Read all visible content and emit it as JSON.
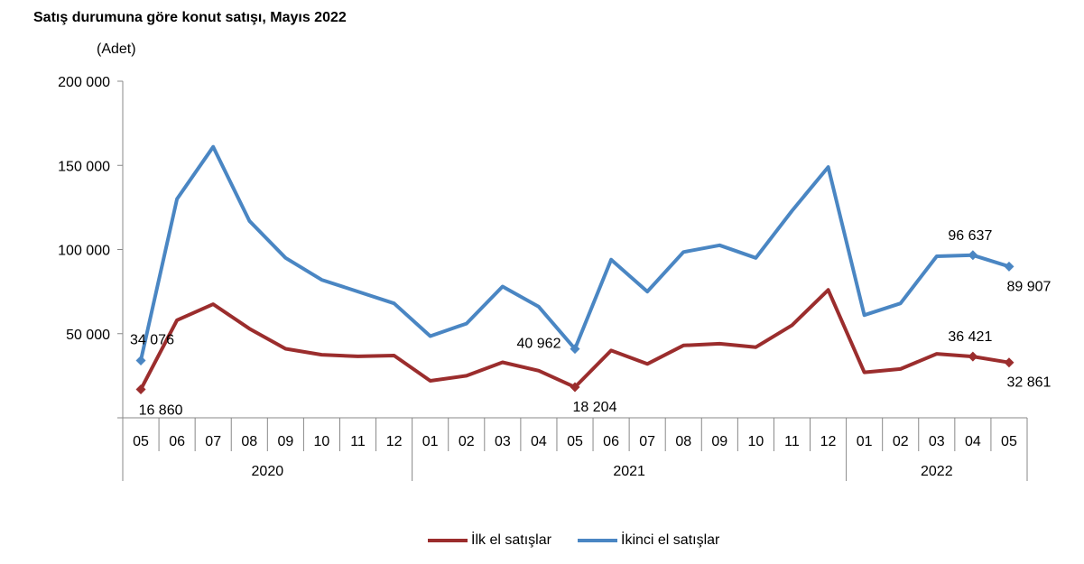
{
  "chart_data": {
    "type": "line",
    "title": "Satış durumuna göre konut satışı, Mayıs 2022",
    "ylabel": "(Adet)",
    "ylim": [
      0,
      200000
    ],
    "yticks": [
      {
        "value": 50000,
        "label": "50 000"
      },
      {
        "value": 100000,
        "label": "100 000"
      },
      {
        "value": 150000,
        "label": "150 000"
      },
      {
        "value": 200000,
        "label": "200 000"
      }
    ],
    "months": [
      "05",
      "06",
      "07",
      "08",
      "09",
      "10",
      "11",
      "12",
      "01",
      "02",
      "03",
      "04",
      "05",
      "06",
      "07",
      "08",
      "09",
      "10",
      "11",
      "12",
      "01",
      "02",
      "03",
      "04",
      "05"
    ],
    "years": [
      {
        "label": "2020",
        "start": 0,
        "end": 7
      },
      {
        "label": "2021",
        "start": 8,
        "end": 19
      },
      {
        "label": "2022",
        "start": 20,
        "end": 24
      }
    ],
    "series": [
      {
        "name": "İlk el satışlar",
        "color": "#9b2d2d",
        "values": [
          16860,
          58000,
          67500,
          53000,
          41000,
          37500,
          36500,
          37000,
          22000,
          25000,
          33000,
          28000,
          18204,
          40000,
          32000,
          43000,
          44000,
          42000,
          55000,
          76000,
          27000,
          29000,
          38000,
          36421,
          32861
        ]
      },
      {
        "name": "İkinci el satışlar",
        "color": "#4a86c3",
        "values": [
          34076,
          130000,
          161000,
          117000,
          95000,
          82000,
          75000,
          68000,
          48500,
          56000,
          78000,
          66000,
          40962,
          94000,
          75000,
          98500,
          102500,
          95000,
          123000,
          149000,
          61000,
          68000,
          96000,
          96637,
          89907
        ]
      }
    ],
    "data_labels": [
      {
        "series": 1,
        "index": 0,
        "text": "34 076",
        "pos": "right"
      },
      {
        "series": 0,
        "index": 0,
        "text": "16 860",
        "pos": "below"
      },
      {
        "series": 1,
        "index": 12,
        "text": "40 962",
        "pos": "upper-left"
      },
      {
        "series": 0,
        "index": 12,
        "text": "18 204",
        "pos": "below"
      },
      {
        "series": 1,
        "index": 23,
        "text": "96 637",
        "pos": "above"
      },
      {
        "series": 0,
        "index": 23,
        "text": "36 421",
        "pos": "above"
      },
      {
        "series": 1,
        "index": 24,
        "text": "89 907",
        "pos": "below"
      },
      {
        "series": 0,
        "index": 24,
        "text": "32 861",
        "pos": "below"
      }
    ],
    "marked_points": [
      0,
      12,
      23,
      24
    ]
  }
}
